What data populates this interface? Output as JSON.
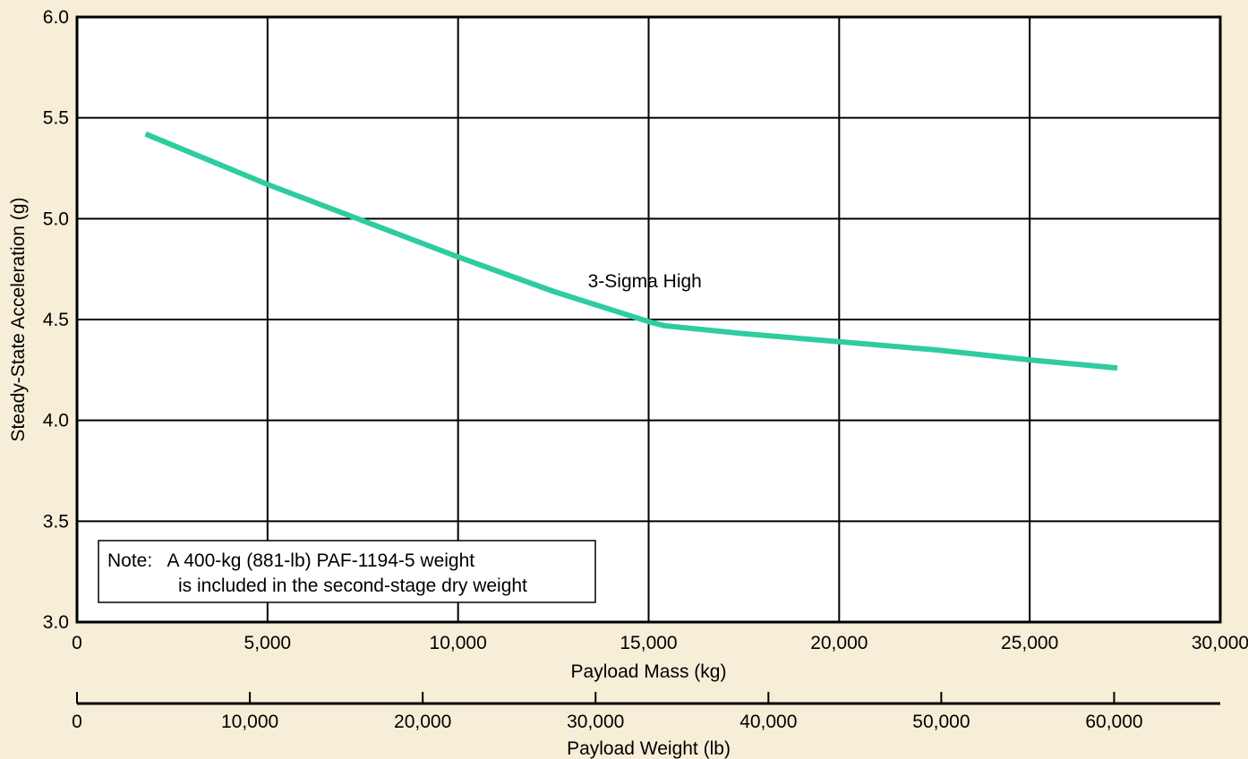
{
  "chart_data": {
    "type": "line",
    "xlabel": "Payload Mass (kg)",
    "ylabel": "Steady-State Acceleration (g)",
    "x2label": "Payload Weight (lb)",
    "xlim": [
      0,
      30000
    ],
    "ylim": [
      3.0,
      6.0
    ],
    "x2lim": [
      0,
      66139
    ],
    "grid": true,
    "x_ticks": [
      {
        "v": 0,
        "label": "0"
      },
      {
        "v": 5000,
        "label": "5,000"
      },
      {
        "v": 10000,
        "label": "10,000"
      },
      {
        "v": 15000,
        "label": "15,000"
      },
      {
        "v": 20000,
        "label": "20,000"
      },
      {
        "v": 25000,
        "label": "25,000"
      },
      {
        "v": 30000,
        "label": "30,000"
      }
    ],
    "y_ticks": [
      {
        "v": 3.0,
        "label": "3.0"
      },
      {
        "v": 3.5,
        "label": "3.5"
      },
      {
        "v": 4.0,
        "label": "4.0"
      },
      {
        "v": 4.5,
        "label": "4.5"
      },
      {
        "v": 5.0,
        "label": "5.0"
      },
      {
        "v": 5.5,
        "label": "5.5"
      },
      {
        "v": 6.0,
        "label": "6.0"
      }
    ],
    "x2_ticks": [
      {
        "v": 0,
        "label": "0"
      },
      {
        "v": 10000,
        "label": "10,000"
      },
      {
        "v": 20000,
        "label": "20,000"
      },
      {
        "v": 30000,
        "label": "30,000"
      },
      {
        "v": 40000,
        "label": "40,000"
      },
      {
        "v": 50000,
        "label": "50,000"
      },
      {
        "v": 60000,
        "label": "60,000"
      }
    ],
    "series": [
      {
        "name": "3-Sigma High",
        "color": "#2ecc9f",
        "x": [
          1800,
          5000,
          7500,
          10000,
          12500,
          15000,
          15400,
          17500,
          20000,
          22500,
          25000,
          27300
        ],
        "y": [
          5.42,
          5.17,
          4.99,
          4.81,
          4.64,
          4.49,
          4.47,
          4.43,
          4.39,
          4.35,
          4.3,
          4.26
        ]
      }
    ],
    "annotations": [
      {
        "text": "3-Sigma High",
        "x": 14900,
        "y": 4.69
      }
    ],
    "note": {
      "lines": [
        "Note:   A 400-kg (881-lb) PAF-1194-5 weight",
        "is included in the second-stage dry weight"
      ]
    }
  }
}
